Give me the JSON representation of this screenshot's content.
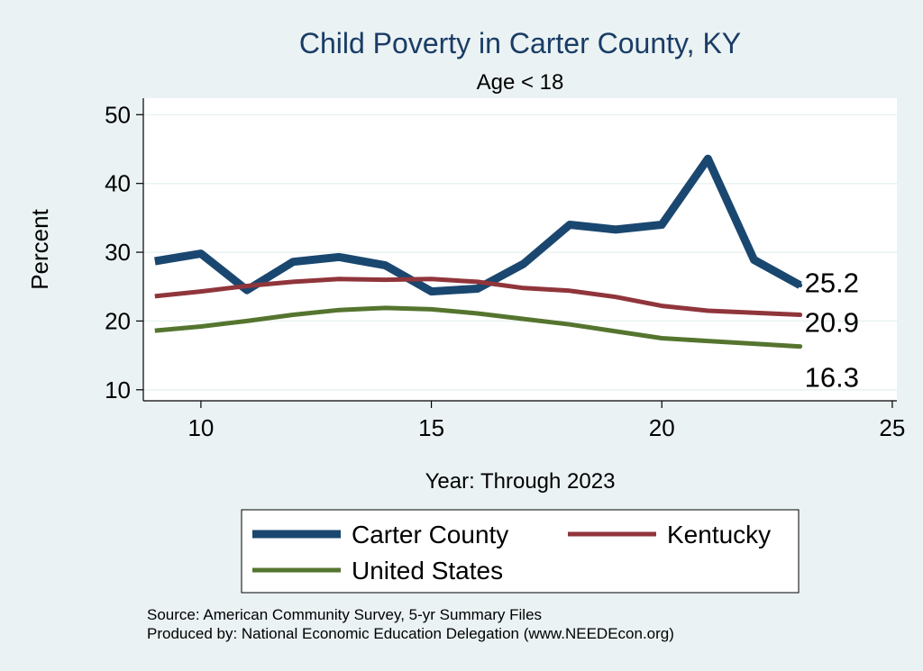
{
  "chart_data": {
    "type": "line",
    "title": "Child Poverty in Carter County, KY",
    "subtitle": "Age < 18",
    "xlabel": "Year: Through 2023",
    "ylabel": "Percent",
    "xlim": [
      8.75,
      25.1
    ],
    "ylim": [
      8.4,
      52.4
    ],
    "x_ticks": [
      10,
      15,
      20,
      25
    ],
    "y_ticks": [
      10,
      20,
      30,
      40,
      50
    ],
    "grid": true,
    "legend_position": "bottom",
    "x": [
      9,
      10,
      11,
      12,
      13,
      14,
      15,
      16,
      17,
      18,
      19,
      20,
      21,
      22,
      23
    ],
    "series": [
      {
        "name": "Carter County",
        "color": "#1a476f",
        "values": [
          28.7,
          29.8,
          24.5,
          28.6,
          29.3,
          28.1,
          24.3,
          24.7,
          28.3,
          34.0,
          33.3,
          34.0,
          43.6,
          28.9,
          25.2
        ],
        "end_label": "25.2"
      },
      {
        "name": "Kentucky",
        "color": "#90353b",
        "values": [
          23.6,
          24.3,
          25.1,
          25.7,
          26.1,
          26.0,
          26.1,
          25.7,
          24.8,
          24.4,
          23.5,
          22.2,
          21.5,
          21.2,
          20.9
        ],
        "end_label": "20.9"
      },
      {
        "name": "United States",
        "color": "#55752f",
        "values": [
          18.6,
          19.2,
          20.0,
          20.9,
          21.6,
          21.9,
          21.7,
          21.1,
          20.3,
          19.5,
          18.5,
          17.5,
          17.1,
          16.7,
          16.3
        ],
        "end_label": "16.3"
      }
    ]
  },
  "footer": {
    "source": "Source: American Community Survey, 5-yr Summary Files",
    "produced": "Produced by: National Economic Education Delegation (www.NEEDEcon.org)"
  }
}
